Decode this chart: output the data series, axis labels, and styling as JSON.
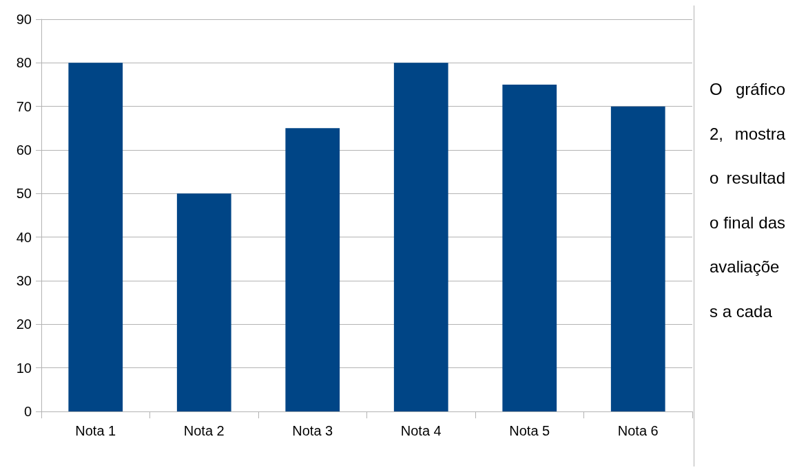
{
  "chart_data": {
    "type": "bar",
    "categories": [
      "Nota 1",
      "Nota 2",
      "Nota 3",
      "Nota 4",
      "Nota 5",
      "Nota 6"
    ],
    "values": [
      80,
      50,
      65,
      80,
      75,
      70
    ],
    "color": "#004586",
    "ylim": [
      0,
      90
    ],
    "yticks": [
      0,
      10,
      20,
      30,
      40,
      50,
      60,
      70,
      80,
      90
    ],
    "grid": "y",
    "annotations": [
      "O gráfico 2, mostra o resultado final das avaliações a cada"
    ]
  }
}
